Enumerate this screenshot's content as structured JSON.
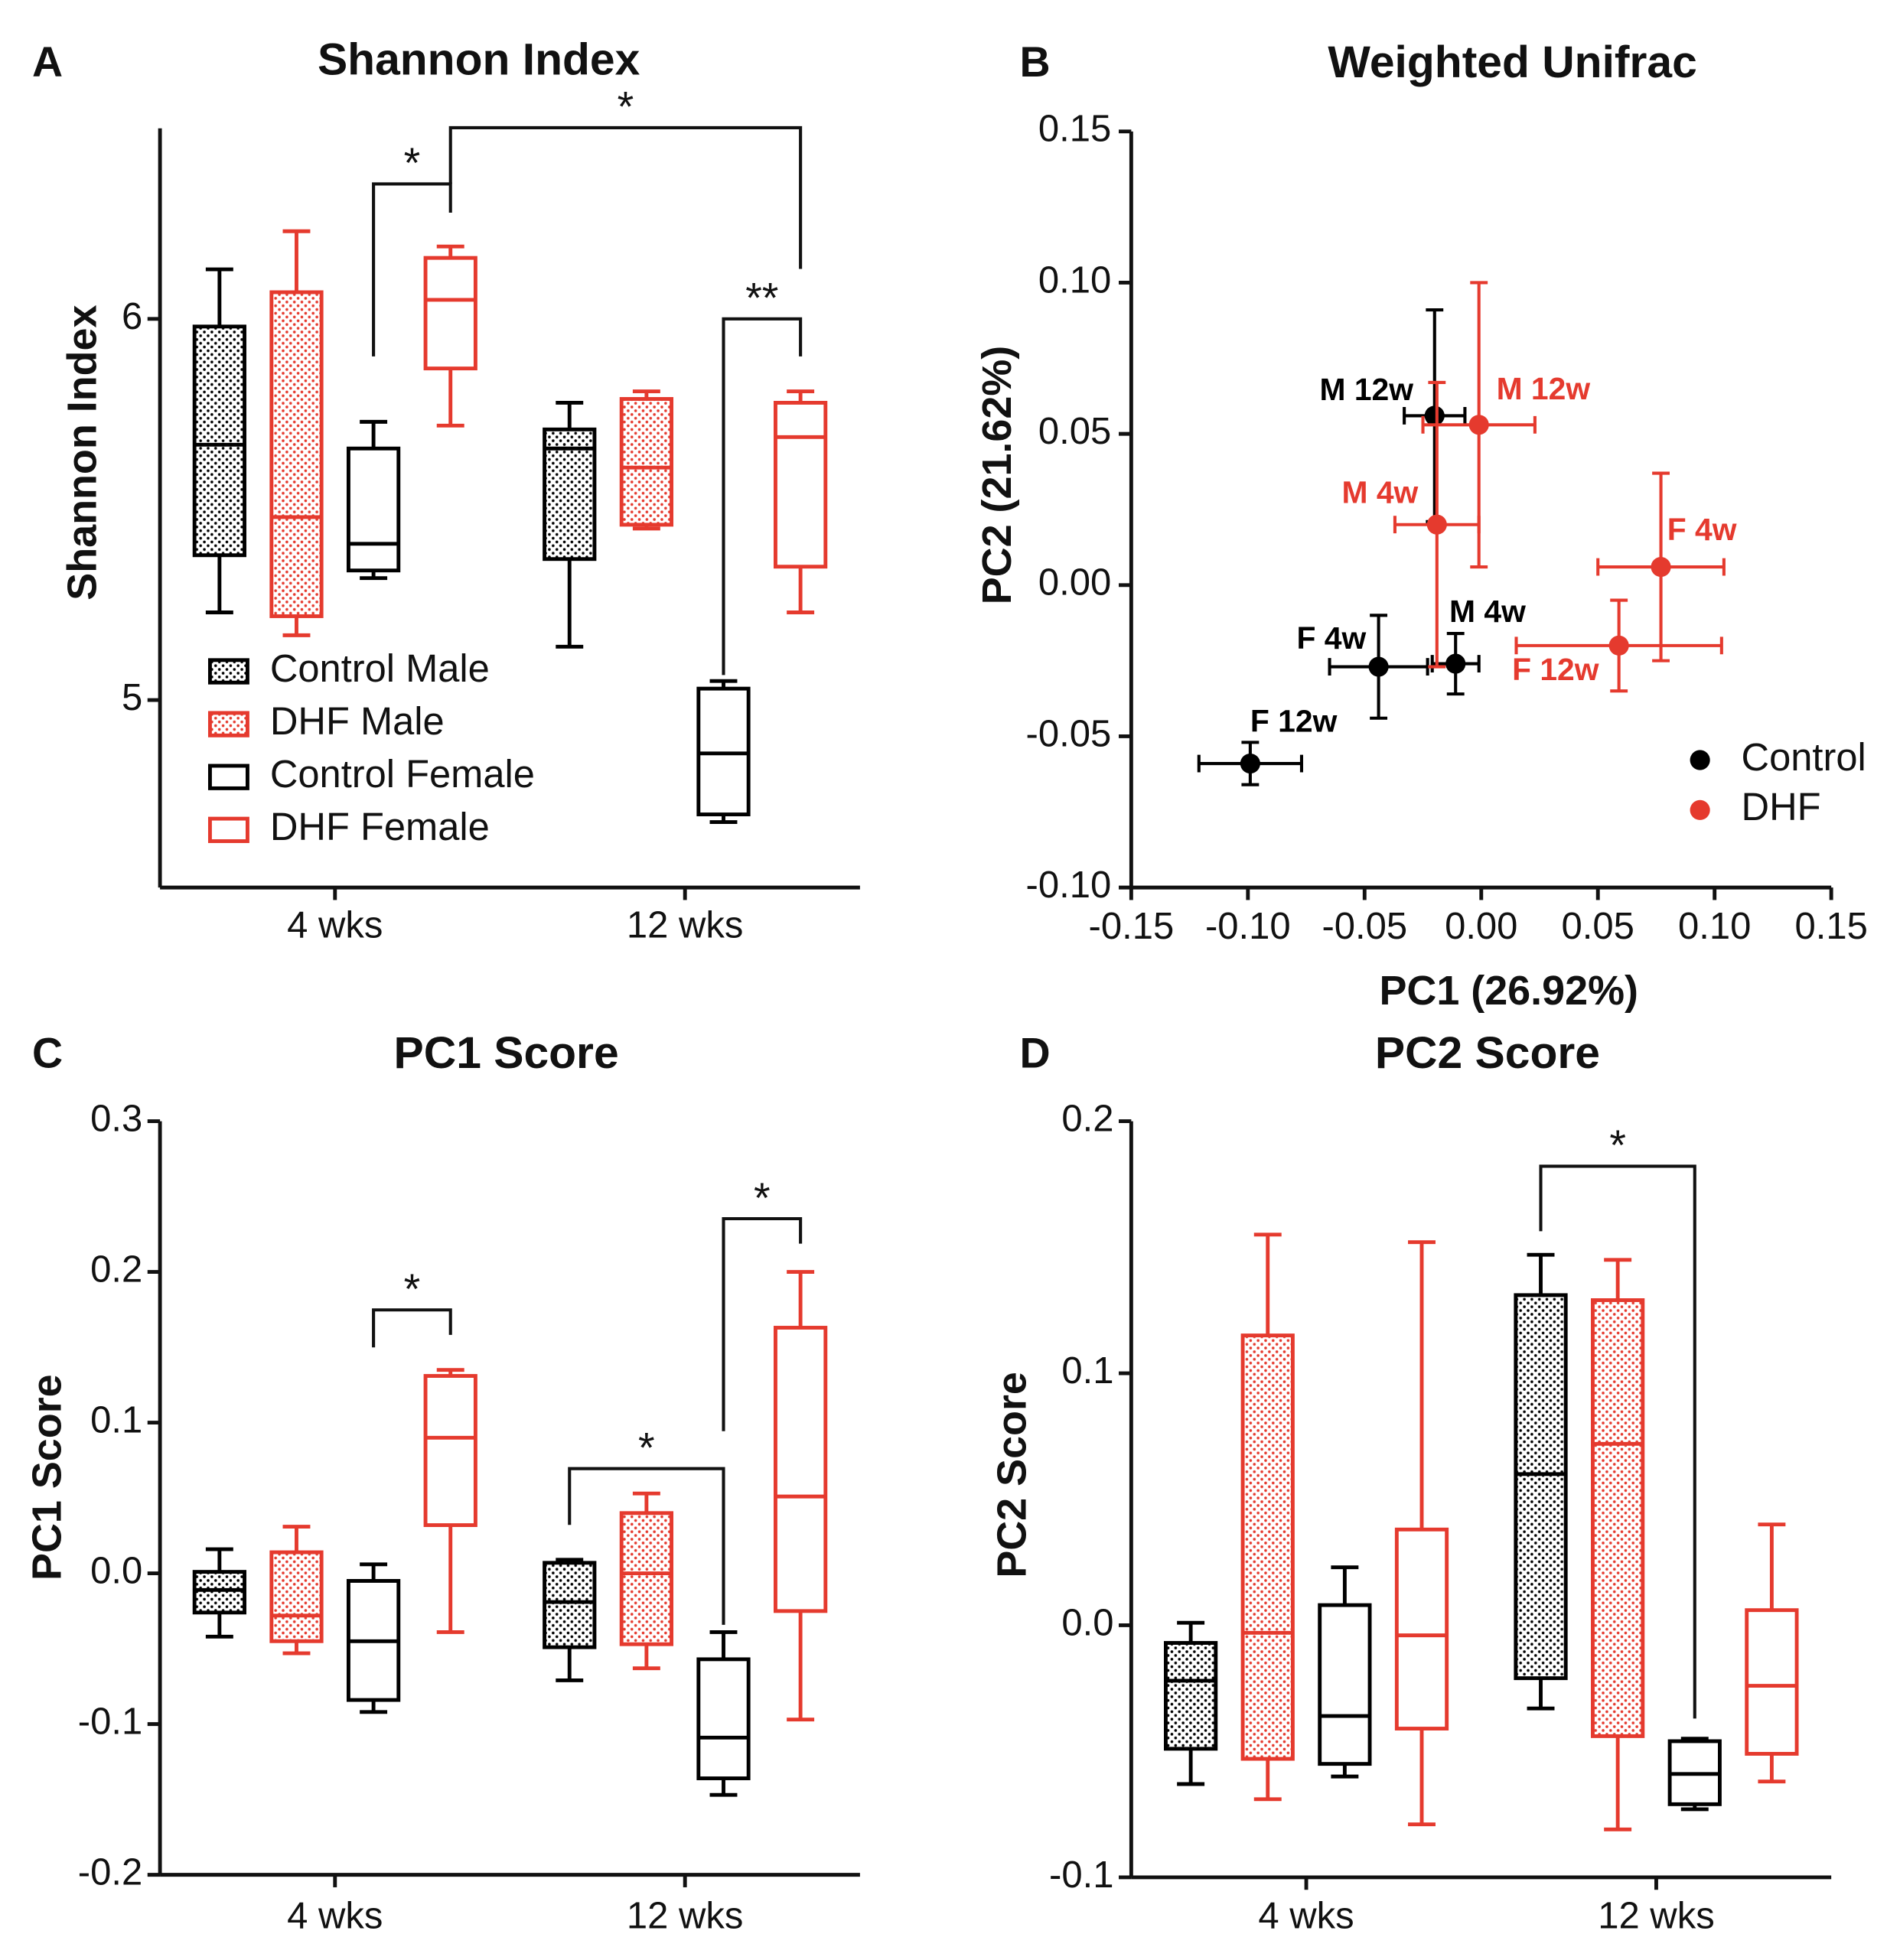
{
  "chart_data": [
    {
      "type": "box",
      "label": "A",
      "title": "Shannon Index",
      "y_label": "Shannon Index",
      "categories": [
        "4 wks",
        "12 wks"
      ],
      "ylim": [
        4.5,
        6.5
      ],
      "yticks": [
        5,
        6
      ],
      "legend": true,
      "series": [
        {
          "name": "Control Male",
          "color": "#000000",
          "fill": "dots",
          "values": [
            {
              "min": 5.23,
              "q1": 5.38,
              "median": 5.67,
              "q3": 5.98,
              "max": 6.13
            },
            {
              "min": 5.14,
              "q1": 5.37,
              "median": 5.66,
              "q3": 5.71,
              "max": 5.78
            }
          ]
        },
        {
          "name": "DHF Male",
          "color": "#e53a2e",
          "fill": "dots",
          "values": [
            {
              "min": 5.17,
              "q1": 5.22,
              "median": 5.48,
              "q3": 6.07,
              "max": 6.23
            },
            {
              "min": 5.45,
              "q1": 5.46,
              "median": 5.61,
              "q3": 5.79,
              "max": 5.81
            }
          ]
        },
        {
          "name": "Control Female",
          "color": "#000000",
          "fill": "none",
          "values": [
            {
              "min": 5.32,
              "q1": 5.34,
              "median": 5.41,
              "q3": 5.66,
              "max": 5.73
            },
            {
              "min": 4.68,
              "q1": 4.7,
              "median": 4.86,
              "q3": 5.03,
              "max": 5.05
            }
          ]
        },
        {
          "name": "DHF Female",
          "color": "#e53a2e",
          "fill": "none",
          "values": [
            {
              "min": 5.72,
              "q1": 5.87,
              "median": 6.05,
              "q3": 6.16,
              "max": 6.19
            },
            {
              "min": 5.23,
              "q1": 5.35,
              "median": 5.69,
              "q3": 5.78,
              "max": 5.81
            }
          ]
        }
      ],
      "annotations": [
        "*",
        "*",
        "**"
      ]
    },
    {
      "type": "scatter",
      "label": "B",
      "title": "Weighted Unifrac",
      "x_label": "PC1 (26.92%)",
      "y_label": "PC2 (21.62%)",
      "xlim": [
        -0.15,
        0.15
      ],
      "ylim": [
        -0.1,
        0.15
      ],
      "xticks": [
        -0.15,
        {
          "value": -0.1,
          "label": "-0.10"
        },
        -0.05,
        {
          "value": 0,
          "label": "0.00"
        },
        0.05,
        {
          "value": 0.1,
          "label": "0.10"
        },
        0.15
      ],
      "yticks": [
        {
          "value": -0.1,
          "label": "-0.10"
        },
        -0.05,
        {
          "value": 0,
          "label": "0.00"
        },
        0.05,
        {
          "value": 0.1,
          "label": "0.10"
        },
        0.15
      ],
      "series": [
        {
          "name": "Control",
          "color": "#000000",
          "point_labels": [
            "M 12w",
            "M 4w",
            "F 4w",
            "F 12w"
          ],
          "x": [
            -0.02,
            -0.011,
            -0.044,
            -0.099
          ],
          "values": [
            0.056,
            -0.026,
            -0.027,
            -0.059
          ],
          "xerr": [
            0.013,
            0.01,
            0.021,
            0.022
          ],
          "yerr": [
            0.035,
            0.01,
            0.017,
            0.007
          ]
        },
        {
          "name": "DHF",
          "color": "#e53a2e",
          "point_labels": [
            "M 12w",
            "M 4w",
            "F 4w",
            "F 12w"
          ],
          "x": [
            -0.001,
            -0.019,
            0.077,
            0.059
          ],
          "values": [
            0.053,
            0.02,
            0.006,
            -0.02
          ],
          "xerr": [
            0.024,
            0.018,
            0.027,
            0.044
          ],
          "yerr": [
            0.047,
            0.047,
            0.031,
            0.015
          ]
        }
      ]
    },
    {
      "type": "box",
      "label": "C",
      "title": "PC1 Score",
      "y_label": "PC1 Score",
      "categories": [
        "4 wks",
        "12 wks"
      ],
      "ylim": [
        -0.2,
        0.3
      ],
      "yticks": [
        -0.2,
        -0.1,
        {
          "value": 0,
          "label": "0.0"
        },
        0.1,
        0.2,
        0.3
      ],
      "series": [
        {
          "color": "#000000",
          "fill": "dots",
          "values": [
            {
              "min": -0.042,
              "q1": -0.026,
              "median": -0.011,
              "q3": 0.001,
              "max": 0.016
            },
            {
              "min": -0.071,
              "q1": -0.049,
              "median": -0.019,
              "q3": 0.007,
              "max": 0.009
            }
          ]
        },
        {
          "color": "#e53a2e",
          "fill": "dots",
          "values": [
            {
              "min": -0.053,
              "q1": -0.045,
              "median": -0.028,
              "q3": 0.014,
              "max": 0.031
            },
            {
              "min": -0.063,
              "q1": -0.047,
              "median": 0.0,
              "q3": 0.04,
              "max": 0.053
            }
          ]
        },
        {
          "color": "#000000",
          "fill": "none",
          "values": [
            {
              "min": -0.092,
              "q1": -0.084,
              "median": -0.045,
              "q3": -0.005,
              "max": 0.006
            },
            {
              "min": -0.147,
              "q1": -0.136,
              "median": -0.109,
              "q3": -0.057,
              "max": -0.039
            }
          ]
        },
        {
          "color": "#e53a2e",
          "fill": "none",
          "values": [
            {
              "min": -0.039,
              "q1": 0.032,
              "median": 0.09,
              "q3": 0.131,
              "max": 0.135
            },
            {
              "min": -0.097,
              "q1": -0.025,
              "median": 0.051,
              "q3": 0.163,
              "max": 0.2
            }
          ]
        }
      ],
      "annotations": [
        "*",
        "*",
        "*"
      ]
    },
    {
      "type": "box",
      "label": "D",
      "title": "PC2 Score",
      "y_label": "PC2 Score",
      "categories": [
        "4 wks",
        "12 wks"
      ],
      "ylim": [
        -0.1,
        0.2
      ],
      "yticks": [
        -0.1,
        {
          "value": 0,
          "label": "0.0"
        },
        0.1,
        0.2
      ],
      "series": [
        {
          "color": "#000000",
          "fill": "dots",
          "values": [
            {
              "min": -0.063,
              "q1": -0.049,
              "median": -0.022,
              "q3": -0.007,
              "max": 0.001
            },
            {
              "min": -0.033,
              "q1": -0.021,
              "median": 0.06,
              "q3": 0.131,
              "max": 0.147
            }
          ]
        },
        {
          "color": "#e53a2e",
          "fill": "dots",
          "values": [
            {
              "min": -0.069,
              "q1": -0.053,
              "median": -0.003,
              "q3": 0.115,
              "max": 0.155
            },
            {
              "min": -0.081,
              "q1": -0.044,
              "median": 0.072,
              "q3": 0.129,
              "max": 0.145
            }
          ]
        },
        {
          "color": "#000000",
          "fill": "none",
          "values": [
            {
              "min": -0.06,
              "q1": -0.055,
              "median": -0.036,
              "q3": 0.008,
              "max": 0.023
            },
            {
              "min": -0.073,
              "q1": -0.071,
              "median": -0.059,
              "q3": -0.046,
              "max": -0.045
            }
          ]
        },
        {
          "color": "#e53a2e",
          "fill": "none",
          "values": [
            {
              "min": -0.079,
              "q1": -0.041,
              "median": -0.004,
              "q3": 0.038,
              "max": 0.152
            },
            {
              "min": -0.062,
              "q1": -0.051,
              "median": -0.024,
              "q3": 0.006,
              "max": 0.04
            }
          ]
        }
      ],
      "annotations": [
        "*"
      ]
    }
  ]
}
